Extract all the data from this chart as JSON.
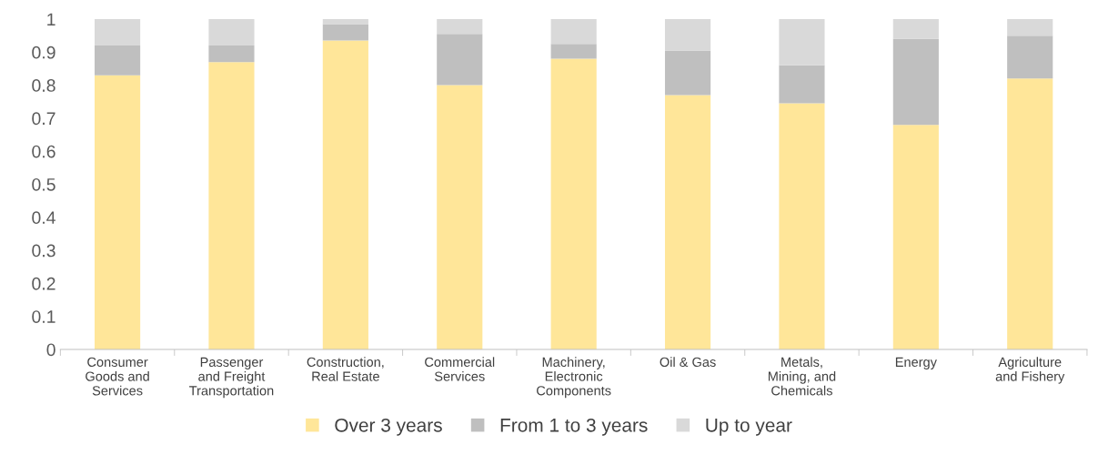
{
  "chart_data": {
    "type": "bar",
    "stacked": true,
    "categories": [
      "Consumer\nGoods and\nServices",
      "Passenger\nand Freight\nTransportation",
      "Construction,\nReal Estate",
      "Commercial\nServices",
      "Machinery,\nElectronic\nComponents",
      "Oil & Gas",
      "Metals,\nMining, and\nChemicals",
      "Energy",
      "Agriculture\nand Fishery"
    ],
    "series": [
      {
        "name": "Over 3 years",
        "color": "#ffe699",
        "values": [
          0.83,
          0.87,
          0.935,
          0.8,
          0.88,
          0.77,
          0.745,
          0.68,
          0.82
        ]
      },
      {
        "name": "From 1 to 3 years",
        "color": "#bfbfbf",
        "values": [
          0.09,
          0.05,
          0.05,
          0.155,
          0.045,
          0.135,
          0.115,
          0.26,
          0.13
        ]
      },
      {
        "name": "Up to year",
        "color": "#d9d9d9",
        "values": [
          0.08,
          0.08,
          0.015,
          0.045,
          0.075,
          0.095,
          0.14,
          0.06,
          0.05
        ]
      }
    ],
    "ylim": [
      0,
      1
    ],
    "yticks": [
      0,
      0.1,
      0.2,
      0.3,
      0.4,
      0.5,
      0.6,
      0.7,
      0.8,
      0.9,
      1
    ],
    "grid": false,
    "legend": "bottom"
  }
}
